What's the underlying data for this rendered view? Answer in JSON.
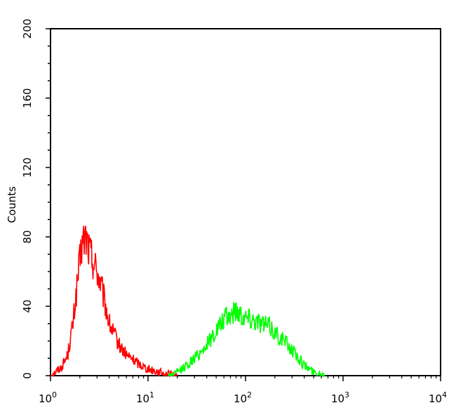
{
  "chart_data": {
    "type": "line",
    "title": "",
    "xlabel": "",
    "ylabel": "Counts",
    "x_scale": "log",
    "xlim": [
      1,
      10000
    ],
    "ylim": [
      0,
      200
    ],
    "grid": false,
    "legend": "none",
    "x_ticks": [
      {
        "base": "10",
        "exp": "0",
        "value": 1
      },
      {
        "base": "10",
        "exp": "1",
        "value": 10
      },
      {
        "base": "10",
        "exp": "2",
        "value": 100
      },
      {
        "base": "10",
        "exp": "3",
        "value": 1000
      },
      {
        "base": "10",
        "exp": "4",
        "value": 10000
      }
    ],
    "y_ticks": [
      "0",
      "40",
      "80",
      "120",
      "160",
      "200"
    ],
    "series": [
      {
        "color": "#ff0000",
        "x": [
          1.0,
          1.3,
          1.5,
          1.7,
          1.9,
          2.1,
          2.3,
          2.5,
          2.8,
          3.2,
          3.6,
          4.0,
          5.0,
          6.0,
          8.0,
          10.0,
          13.0,
          16.0,
          20.0
        ],
        "values": [
          0,
          5,
          12,
          30,
          55,
          75,
          80,
          72,
          65,
          55,
          42,
          30,
          18,
          12,
          7,
          4,
          2,
          1,
          0
        ]
      },
      {
        "color": "#00ff00",
        "x": [
          16,
          20,
          25,
          30,
          35,
          40,
          50,
          60,
          70,
          80,
          90,
          100,
          120,
          150,
          180,
          200,
          250,
          300,
          350,
          400,
          450,
          500,
          600,
          650
        ],
        "values": [
          0,
          2,
          6,
          10,
          14,
          18,
          26,
          32,
          35,
          38,
          36,
          34,
          33,
          30,
          28,
          25,
          20,
          15,
          10,
          6,
          4,
          2,
          1,
          0
        ]
      }
    ]
  }
}
